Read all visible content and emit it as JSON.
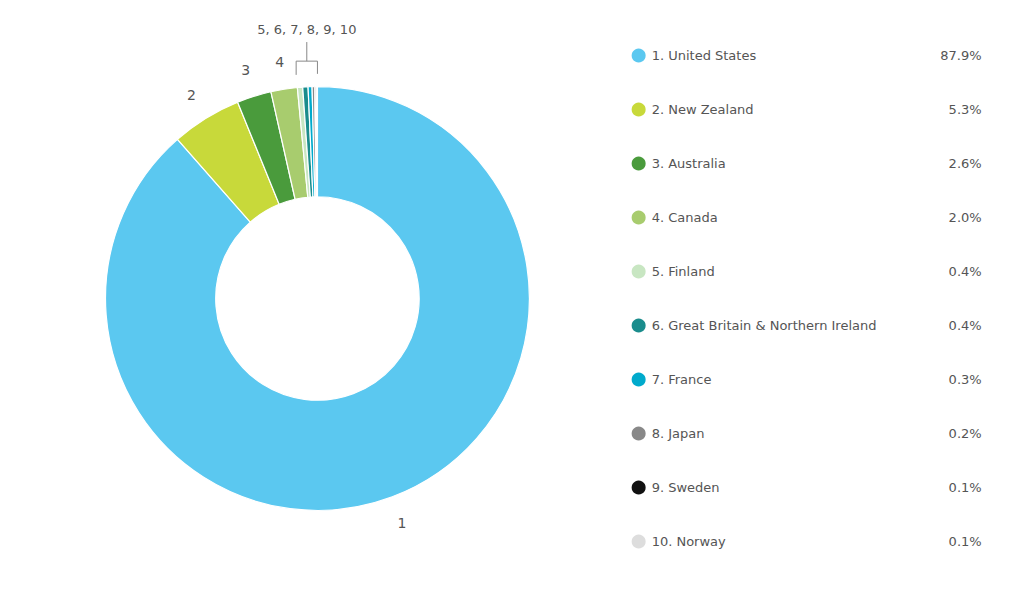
{
  "chart_data": {
    "type": "donut",
    "categories": [
      "1. United States",
      "2. New Zealand",
      "3. Australia",
      "4. Canada",
      "5. Finland",
      "6. Great Britain & Northern Ireland",
      "7. France",
      "8. Japan",
      "9. Sweden",
      "10. Norway"
    ],
    "values": [
      87.9,
      5.3,
      2.6,
      2.0,
      0.4,
      0.4,
      0.3,
      0.2,
      0.1,
      0.1
    ],
    "value_labels": [
      "87.9%",
      "5.3%",
      "2.6%",
      "2.0%",
      "0.4%",
      "0.4%",
      "0.3%",
      "0.2%",
      "0.1%",
      "0.1%"
    ],
    "colors": [
      "#5BC8F0",
      "#C8D93A",
      "#4A9B3C",
      "#A8CC6E",
      "#C8E6C2",
      "#1A8C8C",
      "#00AACC",
      "#888888",
      "#111111",
      "#DDDDDD"
    ],
    "slice_labels": [
      "1",
      "2",
      "3",
      "4",
      null,
      null,
      null,
      null,
      null,
      null
    ],
    "annotations": [
      "5, 6, 7, 8, 9, 10"
    ],
    "legend": "right"
  }
}
